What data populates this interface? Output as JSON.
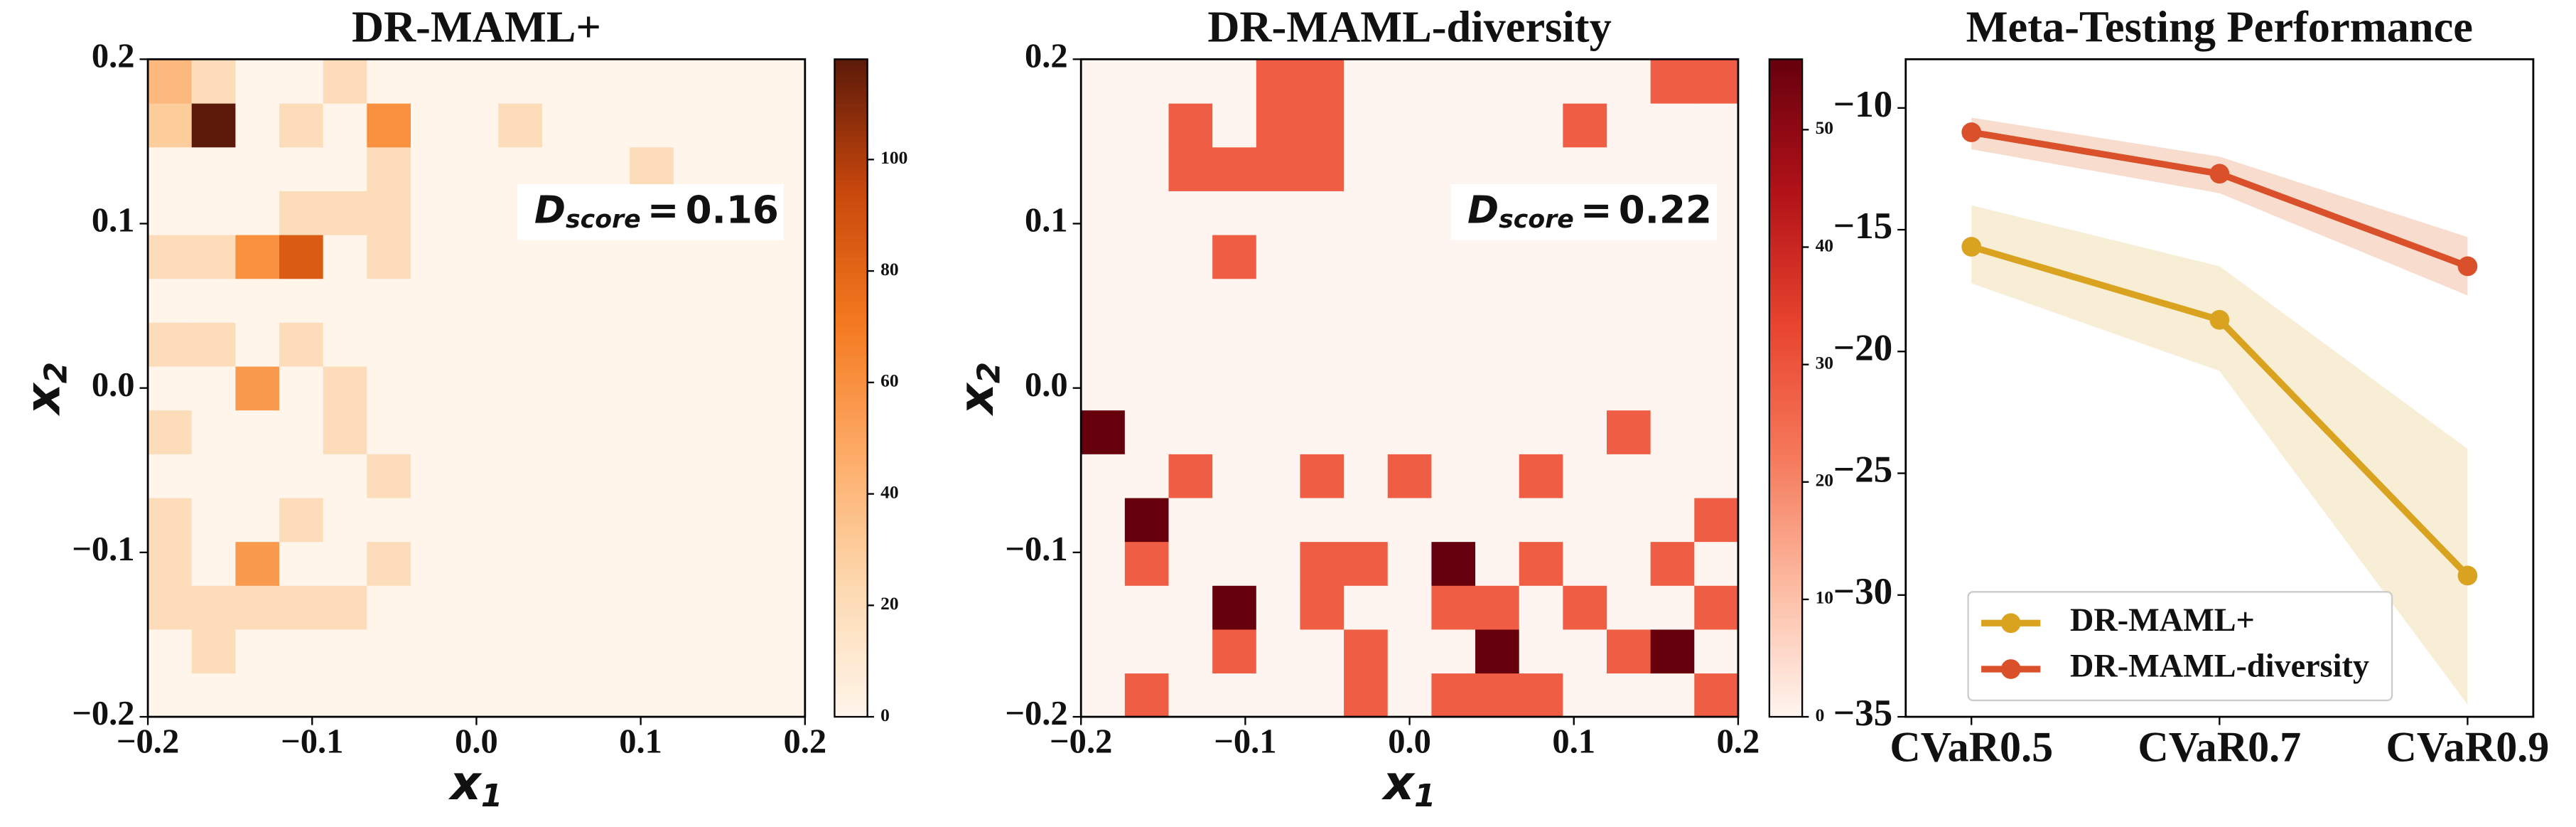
{
  "chart_data": [
    {
      "type": "heatmap",
      "title": "DR-MAML+",
      "xlim": [
        -0.2,
        0.2
      ],
      "ylim": [
        -0.2,
        0.2
      ],
      "xticks": [
        {
          "value": -0.2,
          "label": "−0.2"
        },
        {
          "value": -0.1,
          "label": "−0.1"
        },
        {
          "value": 0,
          "label": "0.0"
        },
        0.1,
        0.2
      ],
      "yticks": [
        {
          "value": -0.2,
          "label": "−0.2"
        },
        {
          "value": -0.1,
          "label": "−0.1"
        },
        {
          "value": 0,
          "label": "0.0"
        },
        0.1,
        0.2
      ],
      "xlabel": {
        "symbol": "x",
        "subscript": "1"
      },
      "ylabel": {
        "symbol": "x",
        "subscript": "2"
      },
      "annotation": {
        "symbol": "D",
        "subscript": "score",
        "relation": "=",
        "value": 0.16
      },
      "zlim": [
        0,
        118
      ],
      "zticks": [
        0,
        20,
        40,
        60,
        80,
        100
      ],
      "colormap": [
        "#fff5eb",
        "#fdd9b0",
        "#fdab67",
        "#f4791f",
        "#c8480c",
        "#5c1a0a"
      ],
      "values": [
        [
          0,
          0,
          0,
          0,
          0,
          0,
          0,
          0,
          0,
          0,
          0,
          0,
          0,
          0,
          0
        ],
        [
          0,
          20,
          0,
          0,
          0,
          0,
          0,
          0,
          0,
          0,
          0,
          0,
          0,
          0,
          0
        ],
        [
          20,
          20,
          20,
          20,
          20,
          0,
          0,
          0,
          0,
          0,
          0,
          0,
          0,
          0,
          0
        ],
        [
          20,
          0,
          55,
          0,
          0,
          20,
          0,
          0,
          0,
          0,
          0,
          0,
          0,
          0,
          0
        ],
        [
          20,
          0,
          0,
          20,
          0,
          0,
          0,
          0,
          0,
          0,
          0,
          0,
          0,
          0,
          0
        ],
        [
          0,
          0,
          0,
          0,
          0,
          20,
          0,
          0,
          0,
          0,
          0,
          0,
          0,
          0,
          0
        ],
        [
          20,
          0,
          0,
          0,
          20,
          0,
          0,
          0,
          0,
          0,
          0,
          0,
          0,
          0,
          0
        ],
        [
          0,
          0,
          55,
          0,
          20,
          0,
          0,
          0,
          0,
          0,
          0,
          0,
          0,
          0,
          0
        ],
        [
          20,
          20,
          0,
          20,
          0,
          0,
          0,
          0,
          0,
          0,
          0,
          0,
          0,
          0,
          0
        ],
        [
          0,
          0,
          0,
          0,
          0,
          0,
          0,
          0,
          0,
          0,
          0,
          0,
          0,
          0,
          0
        ],
        [
          20,
          20,
          60,
          85,
          0,
          20,
          0,
          0,
          0,
          0,
          0,
          0,
          0,
          0,
          0
        ],
        [
          0,
          0,
          0,
          20,
          20,
          20,
          0,
          0,
          0,
          0,
          0,
          0,
          0,
          0,
          0
        ],
        [
          0,
          0,
          0,
          0,
          0,
          20,
          0,
          0,
          0,
          0,
          0,
          20,
          0,
          0,
          0
        ],
        [
          30,
          118,
          0,
          20,
          0,
          60,
          0,
          0,
          20,
          0,
          0,
          0,
          0,
          0,
          0
        ],
        [
          40,
          20,
          0,
          0,
          20,
          0,
          0,
          0,
          0,
          0,
          0,
          0,
          0,
          0,
          0
        ]
      ]
    },
    {
      "type": "heatmap",
      "title": "DR-MAML-diversity",
      "xlim": [
        -0.2,
        0.2
      ],
      "ylim": [
        -0.2,
        0.2
      ],
      "xticks": [
        {
          "value": -0.2,
          "label": "−0.2"
        },
        {
          "value": -0.1,
          "label": "−0.1"
        },
        {
          "value": 0,
          "label": "0.0"
        },
        0.1,
        0.2
      ],
      "yticks": [
        {
          "value": -0.2,
          "label": "−0.2"
        },
        {
          "value": -0.1,
          "label": "−0.1"
        },
        {
          "value": 0,
          "label": "0.0"
        },
        0.1,
        0.2
      ],
      "xlabel": {
        "symbol": "x",
        "subscript": "1"
      },
      "ylabel": {
        "symbol": "x",
        "subscript": "2"
      },
      "annotation": {
        "symbol": "D",
        "subscript": "score",
        "relation": "=",
        "value": 0.22
      },
      "zlim": [
        0,
        56
      ],
      "zticks": [
        0,
        10,
        20,
        30,
        40,
        50
      ],
      "colormap": [
        "#fff5f0",
        "#fcbba1",
        "#f5785a",
        "#e8432e",
        "#b21218",
        "#67000d"
      ],
      "values": [
        [
          0,
          28,
          0,
          0,
          0,
          0,
          28,
          0,
          28,
          28,
          28,
          0,
          0,
          0,
          28
        ],
        [
          0,
          0,
          0,
          28,
          0,
          0,
          28,
          0,
          0,
          56,
          0,
          0,
          28,
          56,
          0
        ],
        [
          0,
          0,
          0,
          56,
          0,
          28,
          0,
          0,
          28,
          28,
          0,
          28,
          0,
          0,
          28
        ],
        [
          0,
          28,
          0,
          0,
          0,
          28,
          28,
          0,
          56,
          0,
          28,
          0,
          0,
          28,
          0
        ],
        [
          0,
          56,
          0,
          0,
          0,
          0,
          0,
          0,
          0,
          0,
          0,
          0,
          0,
          0,
          28
        ],
        [
          0,
          0,
          28,
          0,
          0,
          28,
          0,
          28,
          0,
          0,
          28,
          0,
          0,
          0,
          0
        ],
        [
          56,
          0,
          0,
          0,
          0,
          0,
          0,
          0,
          0,
          0,
          0,
          0,
          28,
          0,
          0
        ],
        [
          0,
          0,
          0,
          0,
          0,
          0,
          0,
          0,
          0,
          0,
          0,
          0,
          0,
          0,
          0
        ],
        [
          0,
          0,
          0,
          0,
          0,
          0,
          0,
          0,
          0,
          0,
          0,
          0,
          0,
          0,
          0
        ],
        [
          0,
          0,
          0,
          0,
          0,
          0,
          0,
          0,
          0,
          0,
          0,
          0,
          0,
          0,
          0
        ],
        [
          0,
          0,
          0,
          28,
          0,
          0,
          0,
          0,
          0,
          0,
          0,
          0,
          0,
          0,
          0
        ],
        [
          0,
          0,
          0,
          0,
          0,
          0,
          0,
          0,
          0,
          0,
          0,
          0,
          0,
          0,
          0
        ],
        [
          0,
          0,
          28,
          28,
          28,
          28,
          0,
          0,
          0,
          0,
          0,
          0,
          0,
          0,
          0
        ],
        [
          0,
          0,
          28,
          0,
          28,
          28,
          0,
          0,
          0,
          0,
          0,
          28,
          0,
          0,
          0
        ],
        [
          0,
          0,
          0,
          0,
          28,
          28,
          0,
          0,
          0,
          0,
          0,
          0,
          0,
          28,
          28
        ]
      ]
    },
    {
      "type": "line",
      "title": "Meta-Testing Performance",
      "categories": [
        "CVaR0.5",
        "CVaR0.7",
        "CVaR0.9"
      ],
      "ylim": [
        -35,
        -8
      ],
      "yticks": [
        {
          "value": -35,
          "label": "−35"
        },
        {
          "value": -30,
          "label": "−30"
        },
        {
          "value": -25,
          "label": "−25"
        },
        {
          "value": -20,
          "label": "−20"
        },
        {
          "value": -15,
          "label": "−15"
        },
        {
          "value": -10,
          "label": "−10"
        }
      ],
      "legend": "lower left",
      "series": [
        {
          "name": "DR-MAML+",
          "color": "#d9a21f",
          "band_color": "#f8eed6",
          "values": [
            -15.7,
            -18.7,
            -29.2
          ],
          "lower": [
            -17.2,
            -20.8,
            -34.5
          ],
          "upper": [
            -14.0,
            -16.5,
            -24.0
          ]
        },
        {
          "name": "DR-MAML-diversity",
          "color": "#d9502a",
          "band_color": "#f8dccd",
          "values": [
            -11.0,
            -12.7,
            -16.5
          ],
          "lower": [
            -11.7,
            -13.5,
            -17.7
          ],
          "upper": [
            -10.4,
            -12.0,
            -15.3
          ]
        }
      ]
    }
  ]
}
